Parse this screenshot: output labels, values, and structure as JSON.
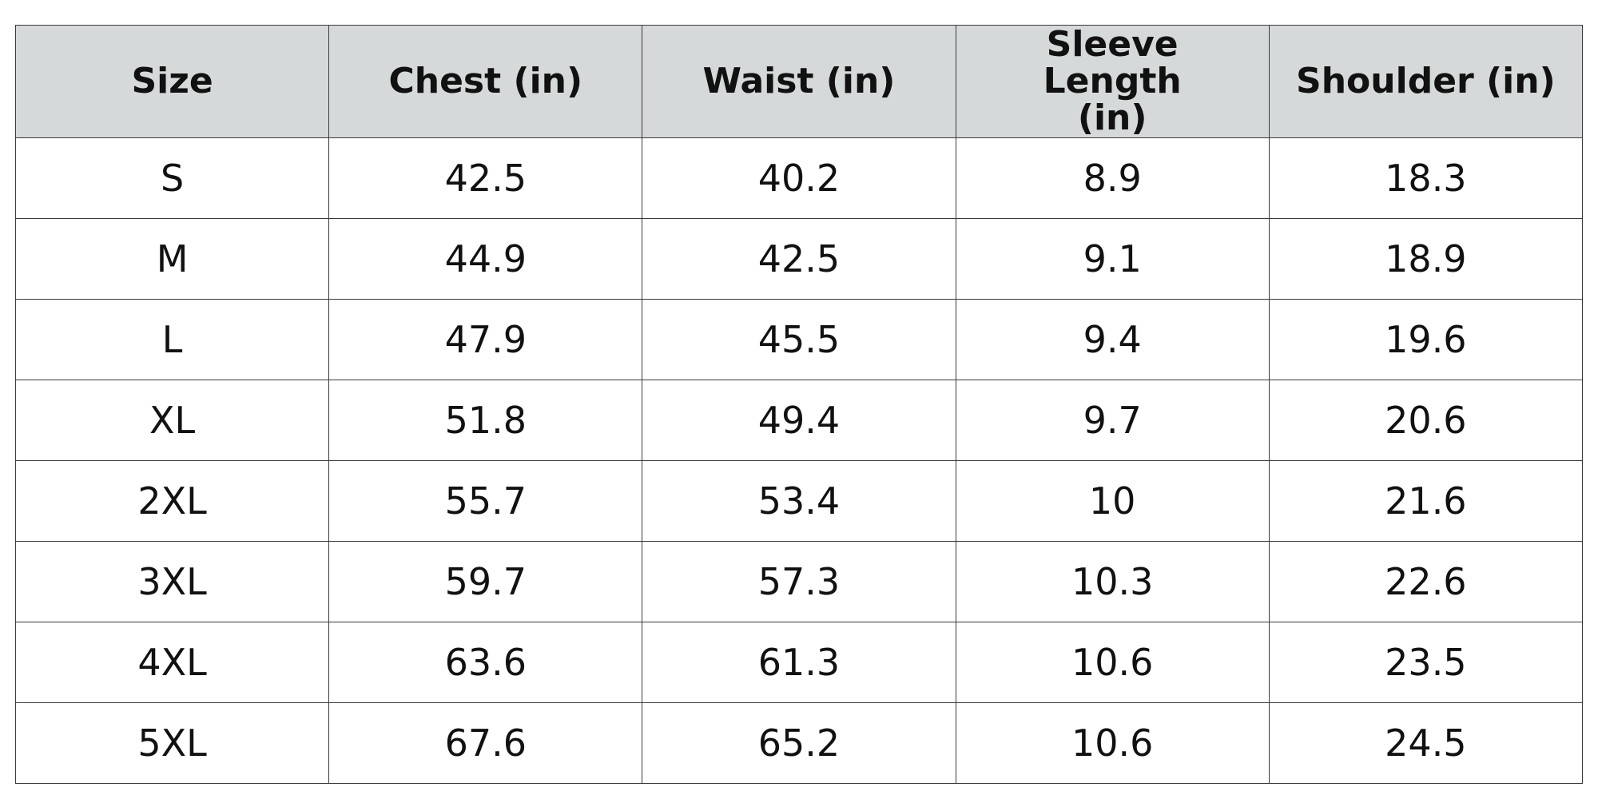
{
  "table": {
    "headers": [
      "Size",
      "Chest (in)",
      "Waist (in)",
      "Sleeve Length (in)",
      "Shoulder (in)"
    ],
    "rows": [
      [
        "S",
        "42.5",
        "40.2",
        "8.9",
        "18.3"
      ],
      [
        "M",
        "44.9",
        "42.5",
        "9.1",
        "18.9"
      ],
      [
        "L",
        "47.9",
        "45.5",
        "9.4",
        "19.6"
      ],
      [
        "XL",
        "51.8",
        "49.4",
        "9.7",
        "20.6"
      ],
      [
        "2XL",
        "55.7",
        "53.4",
        "10",
        "21.6"
      ],
      [
        "3XL",
        "59.7",
        "57.3",
        "10.3",
        "22.6"
      ],
      [
        "4XL",
        "63.6",
        "61.3",
        "10.6",
        "23.5"
      ],
      [
        "5XL",
        "67.6",
        "65.2",
        "10.6",
        "24.5"
      ]
    ]
  },
  "colors": {
    "header_background": "#d5d9da",
    "border": "#3a3a3a",
    "text": "#111111"
  }
}
